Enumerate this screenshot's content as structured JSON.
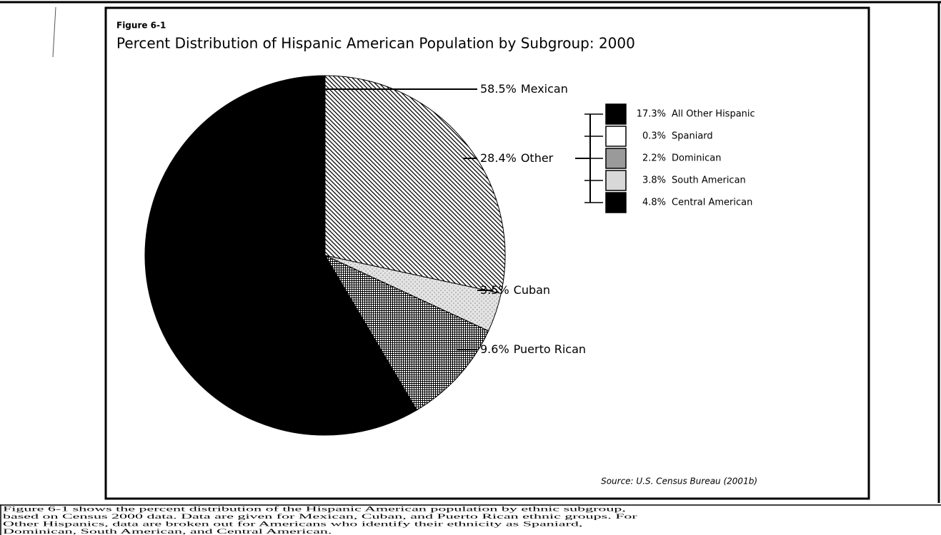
{
  "chart_data": {
    "type": "pie",
    "figure_label": "Figure 6-1",
    "title": "Percent Distribution of Hispanic American Population by Subgroup: 2000",
    "categories": [
      "Other",
      "Cuban",
      "Puerto Rican",
      "Mexican"
    ],
    "values": [
      28.4,
      3.5,
      9.6,
      58.5
    ],
    "value_labels": [
      "28.4%",
      "3.5%",
      "9.6%",
      "58.5%"
    ],
    "colors": [
      "#000000",
      "#8a8a8a",
      "#000000",
      "#000000"
    ],
    "patterns": [
      "diagonal",
      "dots",
      "grid",
      "solid"
    ],
    "breakdown": {
      "of": "Other",
      "categories": [
        "All Other Hispanic",
        "Spaniard",
        "Dominican",
        "South American",
        "Central American"
      ],
      "values": [
        17.3,
        0.3,
        2.2,
        3.8,
        4.8
      ],
      "value_labels": [
        "17.3%",
        "0.3%",
        "2.2%",
        "3.8%",
        "4.8%"
      ],
      "colors": [
        "#000000",
        "#ffffff",
        "#9a9a9a",
        "#d8d8d8",
        "#000000"
      ]
    },
    "source": "Source: U.S. Census Bureau (2001b)"
  },
  "paragraph": [
    "Figure 6-1 shows the percent distribution of the Hispanic American population by ethnic subgroup,",
    "based on Census 2000 data.  Data are given for Mexican, Cuban, and Puerto Rican ethnic groups.  For",
    "Other Hispanics, data are broken out for Americans who identify their ethnicity as Spaniard,",
    "Dominican, South American, and Central American."
  ]
}
